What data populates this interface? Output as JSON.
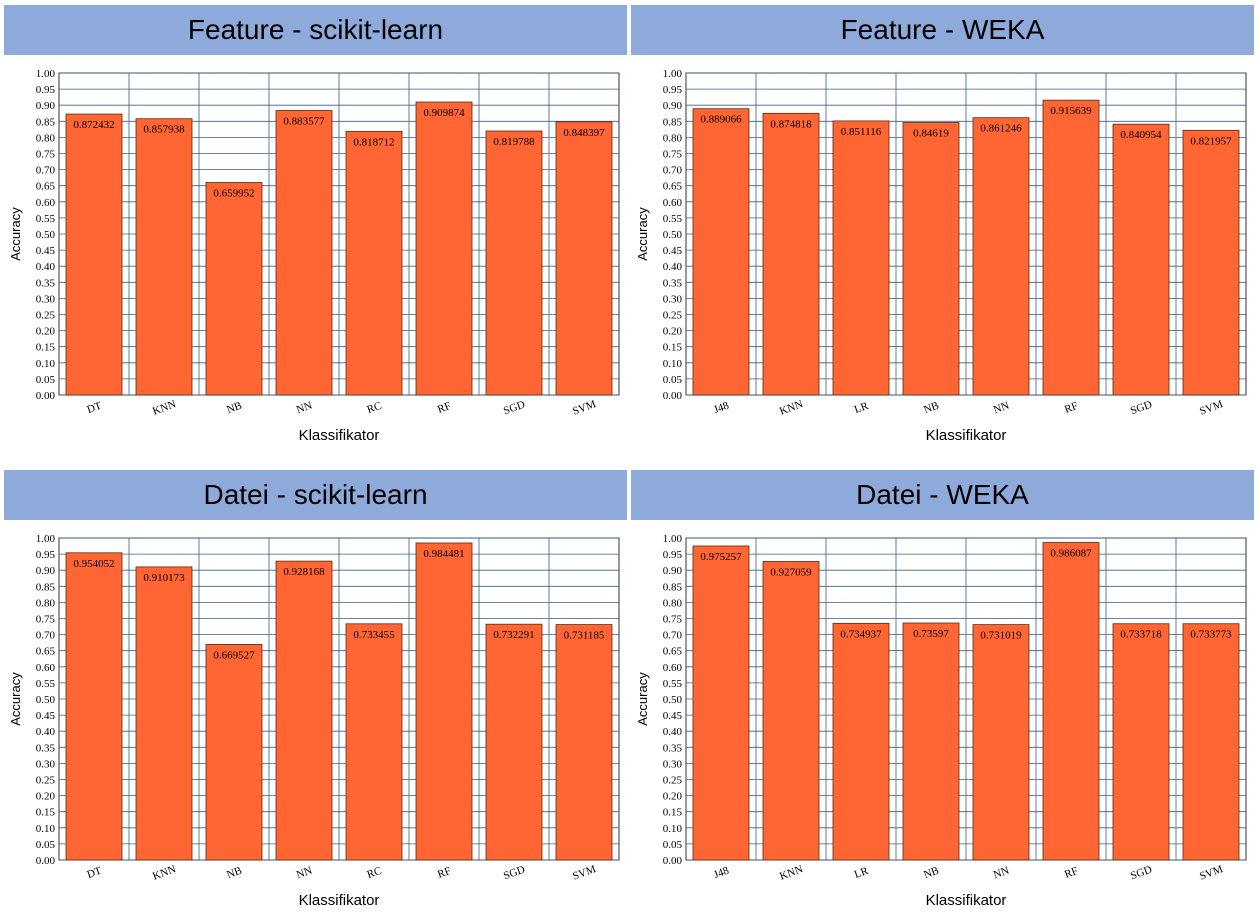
{
  "chart_data": [
    {
      "type": "bar",
      "title": "Feature - scikit-learn",
      "xlabel": "Klassifikator",
      "ylabel": "Accuracy",
      "ylim": [
        0,
        1
      ],
      "yticks": [
        "0.00",
        "0.05",
        "0.10",
        "0.15",
        "0.20",
        "0.25",
        "0.30",
        "0.35",
        "0.40",
        "0.45",
        "0.50",
        "0.55",
        "0.60",
        "0.65",
        "0.70",
        "0.75",
        "0.80",
        "0.85",
        "0.90",
        "0.95",
        "1.00"
      ],
      "categories": [
        "DT",
        "KNN",
        "NB",
        "NN",
        "RC",
        "RF",
        "SGD",
        "SVM"
      ],
      "values": [
        0.872432,
        0.857938,
        0.659952,
        0.883577,
        0.818712,
        0.909874,
        0.819788,
        0.848397
      ],
      "labels": [
        "0.872432",
        "0.857938",
        "0.659952",
        "0.883577",
        "0.818712",
        "0.909874",
        "0.819788",
        "0.848397"
      ],
      "grid": true
    },
    {
      "type": "bar",
      "title": "Feature - WEKA",
      "xlabel": "Klassifikator",
      "ylabel": "Accuracy",
      "ylim": [
        0,
        1
      ],
      "yticks": [
        "0.00",
        "0.05",
        "0.10",
        "0.15",
        "0.20",
        "0.25",
        "0.30",
        "0.35",
        "0.40",
        "0.45",
        "0.50",
        "0.55",
        "0.60",
        "0.65",
        "0.70",
        "0.75",
        "0.80",
        "0.85",
        "0.90",
        "0.95",
        "1.00"
      ],
      "categories": [
        "J48",
        "KNN",
        "LR",
        "NB",
        "NN",
        "RF",
        "SGD",
        "SVM"
      ],
      "values": [
        0.889066,
        0.874818,
        0.851116,
        0.84619,
        0.861246,
        0.915639,
        0.840954,
        0.821957
      ],
      "labels": [
        "0.889066",
        "0.874818",
        "0.851116",
        "0.84619",
        "0.861246",
        "0.915639",
        "0.840954",
        "0.821957"
      ],
      "grid": true
    },
    {
      "type": "bar",
      "title": "Datei - scikit-learn",
      "xlabel": "Klassifikator",
      "ylabel": "Accuracy",
      "ylim": [
        0,
        1
      ],
      "yticks": [
        "0.00",
        "0.05",
        "0.10",
        "0.15",
        "0.20",
        "0.25",
        "0.30",
        "0.35",
        "0.40",
        "0.45",
        "0.50",
        "0.55",
        "0.60",
        "0.65",
        "0.70",
        "0.75",
        "0.80",
        "0.85",
        "0.90",
        "0.95",
        "1.00"
      ],
      "categories": [
        "DT",
        "KNN",
        "NB",
        "NN",
        "RC",
        "RF",
        "SGD",
        "SVM"
      ],
      "values": [
        0.954052,
        0.910173,
        0.669527,
        0.928168,
        0.733455,
        0.984481,
        0.732291,
        0.731185
      ],
      "labels": [
        "0.954052",
        "0.910173",
        "0.669527",
        "0.928168",
        "0.733455",
        "0.984481",
        "0.732291",
        "0.731185"
      ],
      "grid": true
    },
    {
      "type": "bar",
      "title": "Datei - WEKA",
      "xlabel": "Klassifikator",
      "ylabel": "Accuracy",
      "ylim": [
        0,
        1
      ],
      "yticks": [
        "0.00",
        "0.05",
        "0.10",
        "0.15",
        "0.20",
        "0.25",
        "0.30",
        "0.35",
        "0.40",
        "0.45",
        "0.50",
        "0.55",
        "0.60",
        "0.65",
        "0.70",
        "0.75",
        "0.80",
        "0.85",
        "0.90",
        "0.95",
        "1.00"
      ],
      "categories": [
        "J48",
        "KNN",
        "LR",
        "NB",
        "NN",
        "RF",
        "SGD",
        "SVM"
      ],
      "values": [
        0.975257,
        0.927059,
        0.734937,
        0.73597,
        0.731019,
        0.986087,
        0.733718,
        0.733773
      ],
      "labels": [
        "0.975257",
        "0.927059",
        "0.734937",
        "0.73597",
        "0.731019",
        "0.986087",
        "0.733718",
        "0.733773"
      ],
      "grid": true
    }
  ],
  "colors": {
    "header_bg": "#8eaadb",
    "bar_fill": "#ff6633",
    "bar_stroke": "#5a2a10",
    "grid": "#3a5f8a"
  }
}
